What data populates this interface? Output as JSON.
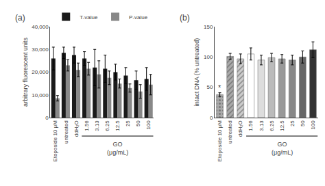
{
  "chart_data": [
    {
      "type": "bar",
      "title": "(a)",
      "categories": [
        "Etoposide 10 μM",
        "untreated",
        "ddH₂O",
        "1.56",
        "3.13",
        "6.25",
        "12.5",
        "25",
        "50",
        "100"
      ],
      "series": [
        {
          "name": "T-value",
          "color": "#1a1a1a",
          "values": [
            26000,
            28500,
            27500,
            26000,
            22000,
            21500,
            20000,
            18500,
            16500,
            17000
          ],
          "errors": [
            5000,
            2500,
            3500,
            3000,
            8000,
            6000,
            3500,
            3500,
            4000,
            5000
          ]
        },
        {
          "name": "P-value",
          "color": "#888888",
          "values": [
            8500,
            23000,
            21000,
            21500,
            19000,
            17500,
            15000,
            13000,
            11500,
            14500
          ],
          "errors": [
            1200,
            2500,
            3000,
            2800,
            6000,
            3000,
            2000,
            1800,
            3000,
            4500
          ]
        }
      ],
      "ylabel": "arbitrary fluorescent units",
      "ylim": [
        0,
        40000
      ],
      "yticks": [
        0,
        {
          "value": 10000,
          "label": "10,000"
        },
        {
          "value": 20000,
          "label": "20,000"
        },
        {
          "value": 30000,
          "label": "30,000"
        },
        {
          "value": 40000,
          "label": "40,000"
        }
      ],
      "grid": false,
      "legend": "top",
      "annotations": [
        {
          "text": "GO\n(μg/mL)",
          "from": "1.56",
          "to": "100"
        }
      ]
    },
    {
      "type": "bar",
      "title": "(b)",
      "categories": [
        "Etoposide 10 μM",
        "untreated",
        "ddH₂O",
        "1.56",
        "3.13",
        "6.25",
        "12.5",
        "25",
        "50",
        "100"
      ],
      "values": [
        38,
        101,
        97,
        105,
        95,
        99,
        97,
        95,
        100,
        112
      ],
      "errors": [
        3,
        5,
        8,
        10,
        8,
        7,
        7,
        8,
        10,
        13
      ],
      "colors": [
        "#aaaaaa",
        "#aaaaaa",
        "#cccccc",
        "#ffffff",
        "#dddddd",
        "#bbbbbb",
        "#999999",
        "#888888",
        "#666666",
        "#333333"
      ],
      "ylabel": "intact DNA (% untreated)",
      "ylim": [
        0,
        150
      ],
      "yticks": [
        0,
        50,
        100,
        150
      ],
      "grid": false,
      "annotations": [
        {
          "text": "GO\n(μg/mL)",
          "from": "1.56",
          "to": "100"
        },
        {
          "text": "*",
          "category": "Etoposide 10 μM"
        }
      ]
    }
  ]
}
